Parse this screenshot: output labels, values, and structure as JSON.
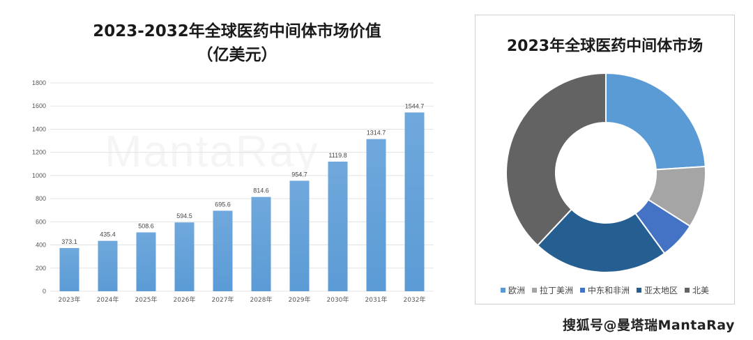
{
  "chart_data": [
    {
      "type": "bar",
      "title": "2023-2032年全球医药中间体市场价值",
      "subtitle": "（亿美元）",
      "categories": [
        "2023年",
        "2024年",
        "2025年",
        "2026年",
        "2027年",
        "2028年",
        "2029年",
        "2030年",
        "2031年",
        "2032年"
      ],
      "values": [
        373.1,
        435.4,
        508.6,
        594.5,
        695.6,
        814.6,
        954.7,
        1119.8,
        1314.7,
        1544.7
      ],
      "value_labels": [
        "373.1",
        "435.4",
        "508.6",
        "594.5",
        "695.6",
        "814.6",
        "954.7",
        "1119.8",
        "1314.7",
        "1544.7"
      ],
      "ylim": [
        0,
        1800
      ],
      "yticks": [
        0,
        200,
        400,
        600,
        800,
        1000,
        1200,
        1400,
        1600,
        1800
      ],
      "grid": true,
      "bar_color": "#5b9bd5"
    },
    {
      "type": "pie",
      "title": "2023年全球医药中间体市场",
      "hole": true,
      "labels": [
        "欧洲",
        "拉丁美洲",
        "中东和非洲",
        "亚太地区",
        "北美"
      ],
      "values": [
        24,
        10,
        6,
        22,
        38
      ],
      "colors": [
        "#5b9bd5",
        "#a5a5a5",
        "#4472c4",
        "#255e91",
        "#636363"
      ],
      "legend_position": "bottom"
    }
  ],
  "watermark_text": "搜狐号@曼塔瑞MantaRay",
  "faint_watermark": "MantaRay"
}
